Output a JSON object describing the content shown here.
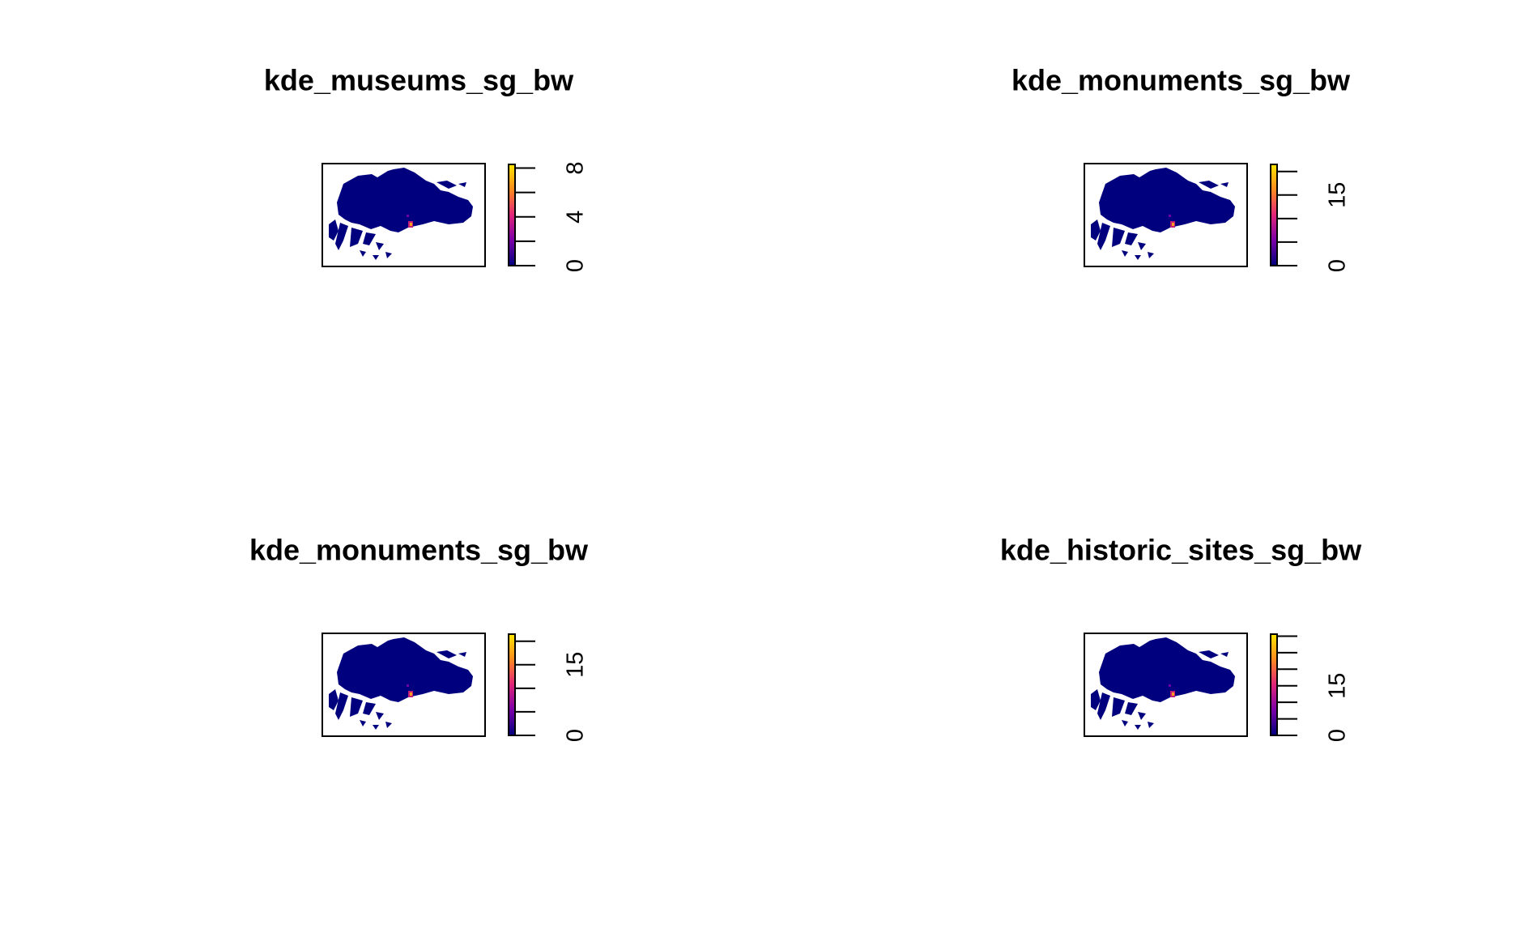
{
  "chart_data": [
    {
      "type": "raster",
      "title": "kde_museums_sg_bw",
      "zlim": [
        0,
        8.3
      ],
      "zticks": [
        0,
        4,
        8
      ],
      "zminorticks": [
        2,
        6
      ],
      "colormap": [
        "#00007f",
        "#7a00a8",
        "#e0247a",
        "#ff8a1f",
        "#ffe600"
      ]
    },
    {
      "type": "raster",
      "title": "kde_monuments_sg_bw",
      "zlim": [
        0,
        21.5
      ],
      "zticks": [
        0,
        15
      ],
      "zminorticks": [
        5,
        10,
        20
      ],
      "colormap": [
        "#00007f",
        "#7a00a8",
        "#e0247a",
        "#ff8a1f",
        "#ffe600"
      ]
    },
    {
      "type": "raster",
      "title": "kde_monuments_sg_bw",
      "zlim": [
        0,
        21.5
      ],
      "zticks": [
        0,
        15
      ],
      "zminorticks": [
        5,
        10,
        20
      ],
      "colormap": [
        "#00007f",
        "#7a00a8",
        "#e0247a",
        "#ff8a1f",
        "#ffe600"
      ]
    },
    {
      "type": "raster",
      "title": "kde_historic_sites_sg_bw",
      "zlim": [
        0,
        30.6
      ],
      "zticks": [
        0,
        15
      ],
      "zminorticks": [
        5,
        10,
        20,
        25,
        30
      ],
      "colormap": [
        "#00007f",
        "#7a00a8",
        "#e0247a",
        "#ff8a1f",
        "#ffe600"
      ]
    }
  ]
}
